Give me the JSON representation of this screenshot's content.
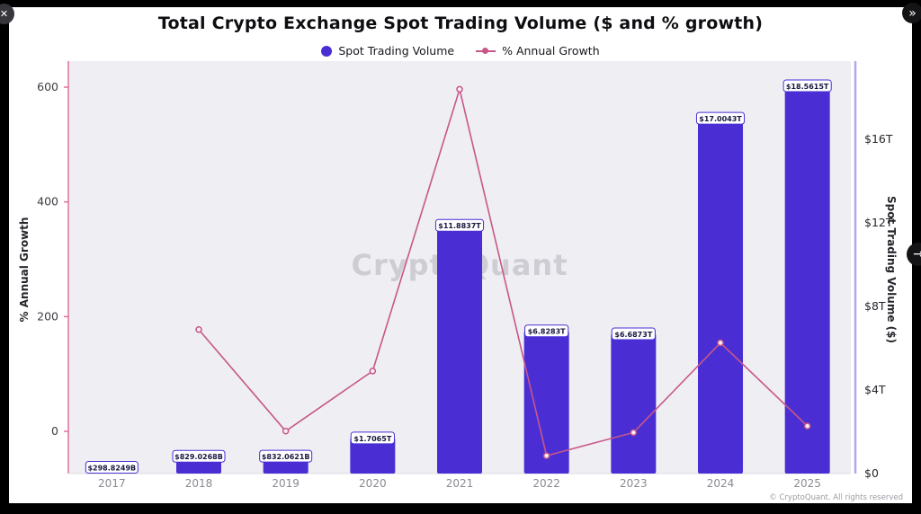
{
  "window": {
    "watermark": "CryptoQuant",
    "copyright": "© CryptoQuant. All rights reserved"
  },
  "overlay": {
    "close_icon": "✕",
    "double_chevron_icon": "»",
    "forward_icon": "→"
  },
  "legend": {
    "items": [
      {
        "label": "Spot Trading Volume",
        "marker": "circle",
        "color": "#4a2ed4"
      },
      {
        "label": "% Annual Growth",
        "marker": "line-dot",
        "color": "#c75788"
      }
    ]
  },
  "chart_data": {
    "type": "bar",
    "title": "Total Crypto Exchange Spot Trading Volume ($ and % growth)",
    "categories": [
      "2017",
      "2018",
      "2019",
      "2020",
      "2021",
      "2022",
      "2023",
      "2024",
      "2025"
    ],
    "series": [
      {
        "name": "Spot Trading Volume",
        "type": "bar",
        "axis": "right",
        "unit": "trillion USD",
        "values": [
          0.2988,
          0.829,
          0.8321,
          1.7065,
          11.8837,
          6.8283,
          6.6873,
          17.0043,
          18.5615
        ],
        "data_labels": [
          "$298.8249B",
          "$829.0268B",
          "$832.0621B",
          "$1.7065T",
          "$11.8837T",
          "$6.8283T",
          "$6.6873T",
          "$17.0043T",
          "$18.5615T"
        ]
      },
      {
        "name": "% Annual Growth",
        "type": "line",
        "axis": "left",
        "unit": "%",
        "values": [
          null,
          177.4,
          0.4,
          105.1,
          596.4,
          -42.5,
          -2.1,
          154.3,
          9.2
        ]
      }
    ],
    "left_axis": {
      "title": "% Annual Growth",
      "ticks": [
        0,
        200,
        400,
        600
      ],
      "range": [
        -74,
        640
      ]
    },
    "right_axis": {
      "title": "Spot Trading Volume ($)",
      "ticks": [
        "$0",
        "$4T",
        "$8T",
        "$12T",
        "$16T"
      ],
      "tick_values": [
        0,
        4,
        8,
        12,
        16
      ],
      "range": [
        0,
        19.7
      ]
    },
    "legend_position": "top",
    "grid": false
  },
  "colors": {
    "bar": "#4a2ed4",
    "line": "#c75788",
    "left_spine": "#e0719a",
    "right_spine": "#b7a6ee",
    "plot_bg": "#efeef3",
    "page_bg": "#000000",
    "card_bg": "#ffffff",
    "label_border": "#4a2ed4"
  }
}
